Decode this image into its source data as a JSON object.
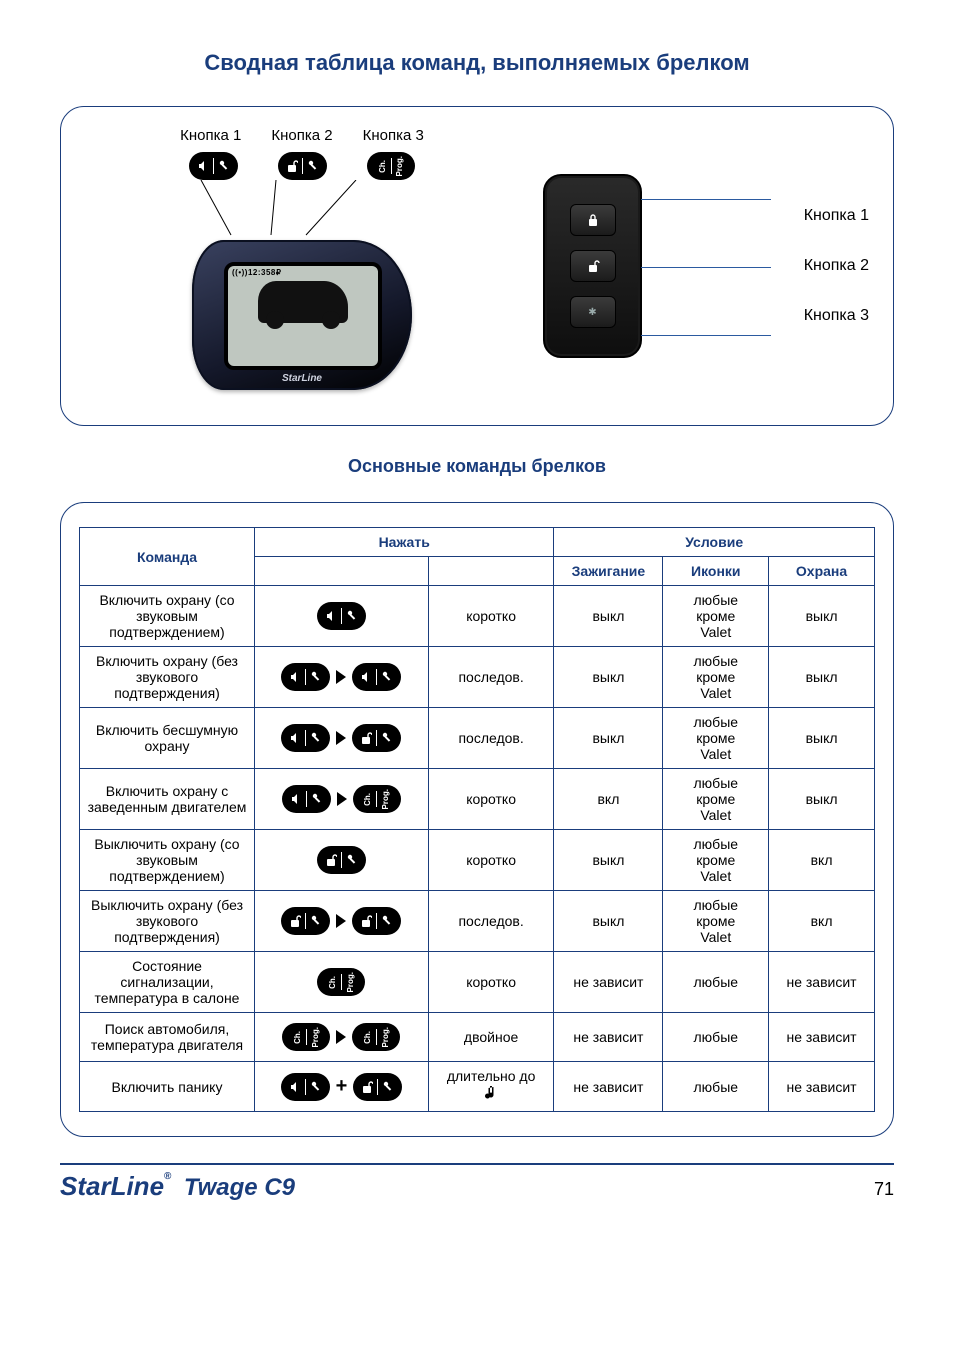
{
  "colors": {
    "primary": "#1a3d7c",
    "pill_bg": "#000000",
    "pill_fg": "#ffffff",
    "page_bg": "#ffffff"
  },
  "title": "Сводная таблица команд, выполняемых брелком",
  "subtitle": "Основные команды брелков",
  "remote_main": {
    "buttons": [
      "Кнопка 1",
      "Кнопка 2",
      "Кнопка 3"
    ],
    "screen_top": "((•))12:358₽",
    "brand": "StarLine"
  },
  "remote_aux": {
    "labels": [
      "Кнопка 1",
      "Кнопка 2",
      "Кнопка 3"
    ]
  },
  "icons": {
    "b1": "lock",
    "b2": "unlock",
    "b3": "ch-prog"
  },
  "table": {
    "headers": {
      "command": "Команда",
      "press": "Нажать",
      "condition": "Условие",
      "ignition": "Зажигание",
      "icons": "Иконки",
      "guard": "Охрана"
    },
    "rows": [
      {
        "command": "Включить охрану (со звуковым подтверждением)",
        "press_seq": [
          {
            "icon": "b1"
          }
        ],
        "press_type": "коротко",
        "ignition": "выкл",
        "icons": "любые кроме Valet",
        "guard": "выкл"
      },
      {
        "command": "Включить охрану (без звукового подтверждения)",
        "press_seq": [
          {
            "icon": "b1"
          },
          {
            "sep": "tri"
          },
          {
            "icon": "b1"
          }
        ],
        "press_type": "последов.",
        "ignition": "выкл",
        "icons": "любые кроме Valet",
        "guard": "выкл"
      },
      {
        "command": "Включить бесшумную охрану",
        "press_seq": [
          {
            "icon": "b1"
          },
          {
            "sep": "tri"
          },
          {
            "icon": "b2"
          }
        ],
        "press_type": "последов.",
        "ignition": "выкл",
        "icons": "любые кроме Valet",
        "guard": "выкл"
      },
      {
        "command": "Включить охрану с заведенным двигателем",
        "press_seq": [
          {
            "icon": "b1"
          },
          {
            "sep": "tri"
          },
          {
            "icon": "b3"
          }
        ],
        "press_type": "коротко",
        "ignition": "вкл",
        "icons": "любые кроме Valet",
        "guard": "выкл"
      },
      {
        "command": "Выключить охрану (со звуковым подтверждением)",
        "press_seq": [
          {
            "icon": "b2"
          }
        ],
        "press_type": "коротко",
        "ignition": "выкл",
        "icons": "любые кроме Valet",
        "guard": "вкл"
      },
      {
        "command": "Выключить охрану (без звукового подтверждения)",
        "press_seq": [
          {
            "icon": "b2"
          },
          {
            "sep": "tri"
          },
          {
            "icon": "b2"
          }
        ],
        "press_type": "последов.",
        "ignition": "выкл",
        "icons": "любые кроме Valet",
        "guard": "вкл"
      },
      {
        "command": "Состояние сигнализации, температура в салоне",
        "press_seq": [
          {
            "icon": "b3"
          }
        ],
        "press_type": "коротко",
        "ignition": "не зависит",
        "icons": "любые",
        "guard": "не зависит"
      },
      {
        "command": "Поиск автомобиля, температура двигателя",
        "press_seq": [
          {
            "icon": "b3"
          },
          {
            "sep": "tri"
          },
          {
            "icon": "b3"
          }
        ],
        "press_type": "двойное",
        "ignition": "не зависит",
        "icons": "любые",
        "guard": "не зависит"
      },
      {
        "command": "Включить панику",
        "press_seq": [
          {
            "icon": "b1"
          },
          {
            "sep": "plus"
          },
          {
            "icon": "b2"
          }
        ],
        "press_type": "длительно до ♪",
        "press_type_has_note_icon": true,
        "ignition": "не зависит",
        "icons": "любые",
        "guard": "не зависит"
      }
    ]
  },
  "footer": {
    "brand": "StarLine",
    "model": "Twage C9",
    "page": "71"
  }
}
